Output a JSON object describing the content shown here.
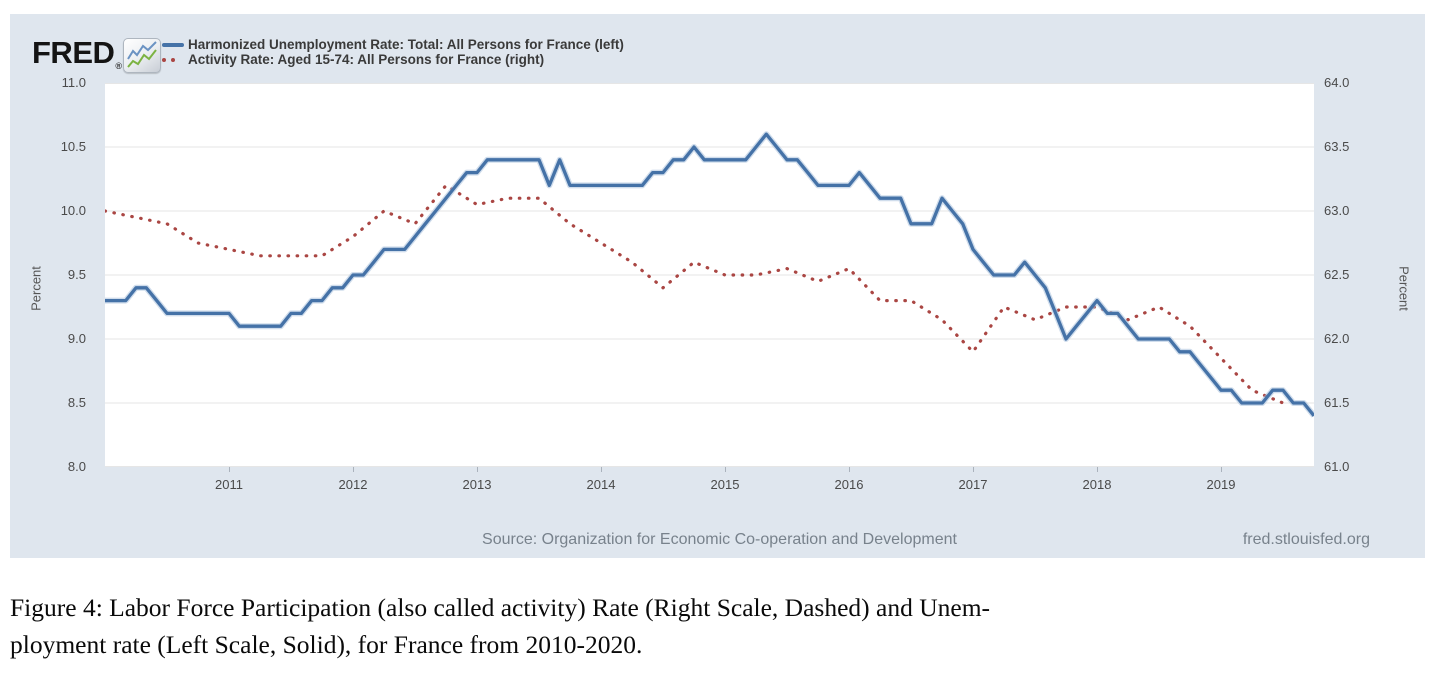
{
  "header": {
    "logo": "FRED",
    "logo_registered": "®",
    "legend": [
      {
        "label": "Harmonized Unemployment Rate: Total: All Persons for France (left)",
        "swatch": "solid-line",
        "color": "#4572a7"
      },
      {
        "label": "Activity Rate: Aged 15-74: All Persons for France (right)",
        "swatch": "dotted-line",
        "color": "#aa4643"
      }
    ]
  },
  "left_axis": {
    "title": "Percent",
    "ticks": [
      "11.0",
      "10.5",
      "10.0",
      "9.5",
      "9.0",
      "8.5",
      "8.0"
    ]
  },
  "right_axis": {
    "title": "Percent",
    "ticks": [
      "64.0",
      "63.5",
      "63.0",
      "62.5",
      "62.0",
      "61.5",
      "61.0"
    ]
  },
  "x_axis": {
    "years": [
      "2011",
      "2012",
      "2013",
      "2014",
      "2015",
      "2016",
      "2017",
      "2018",
      "2019"
    ]
  },
  "footer": {
    "source": "Source: Organization for Economic Co-operation and Development",
    "site": "fred.stlouisfed.org"
  },
  "caption": {
    "line1": "Figure 4: Labor Force Participation (also called activity) Rate (Right Scale, Dashed) and Unem-",
    "line2": "ployment rate (Left Scale, Solid), for France from 2010-2020."
  },
  "chart_data": {
    "type": "line",
    "title": "",
    "grid": true,
    "x_range_years": [
      2010.0,
      2019.75
    ],
    "left_ylim": [
      8.0,
      11.0
    ],
    "right_ylim": [
      61.0,
      64.0
    ],
    "legend_position": "top-left",
    "series": [
      {
        "name": "Harmonized Unemployment Rate: Total: All Persons for France (left)",
        "axis": "left",
        "style": "solid",
        "color": "#4572a7",
        "frequency": "monthly",
        "start": "2010-01",
        "values": [
          9.3,
          9.3,
          9.3,
          9.4,
          9.4,
          9.3,
          9.2,
          9.2,
          9.2,
          9.2,
          9.2,
          9.2,
          9.2,
          9.1,
          9.1,
          9.1,
          9.1,
          9.1,
          9.2,
          9.2,
          9.3,
          9.3,
          9.4,
          9.4,
          9.5,
          9.5,
          9.6,
          9.7,
          9.7,
          9.7,
          9.8,
          9.9,
          10.0,
          10.1,
          10.2,
          10.3,
          10.3,
          10.4,
          10.4,
          10.4,
          10.4,
          10.4,
          10.4,
          10.2,
          10.4,
          10.2,
          10.2,
          10.2,
          10.2,
          10.2,
          10.2,
          10.2,
          10.2,
          10.3,
          10.3,
          10.4,
          10.4,
          10.5,
          10.4,
          10.4,
          10.4,
          10.4,
          10.4,
          10.5,
          10.6,
          10.5,
          10.4,
          10.4,
          10.3,
          10.2,
          10.2,
          10.2,
          10.2,
          10.3,
          10.2,
          10.1,
          10.1,
          10.1,
          9.9,
          9.9,
          9.9,
          10.1,
          10.0,
          9.9,
          9.7,
          9.6,
          9.5,
          9.5,
          9.5,
          9.6,
          9.5,
          9.4,
          9.2,
          9.0,
          9.1,
          9.2,
          9.3,
          9.2,
          9.2,
          9.1,
          9.0,
          9.0,
          9.0,
          9.0,
          8.9,
          8.9,
          8.8,
          8.7,
          8.6,
          8.6,
          8.5,
          8.5,
          8.5,
          8.6,
          8.6,
          8.5,
          8.5,
          8.4
        ]
      },
      {
        "name": "Activity Rate: Aged 15-74: All Persons for France (right)",
        "axis": "right",
        "style": "dotted",
        "color": "#aa4643",
        "frequency": "quarterly",
        "start": "2010-Q1",
        "values": [
          63.0,
          62.95,
          62.9,
          62.75,
          62.7,
          62.65,
          62.65,
          62.65,
          62.8,
          63.0,
          62.9,
          63.2,
          63.05,
          63.1,
          63.1,
          62.9,
          62.75,
          62.6,
          62.4,
          62.6,
          62.5,
          62.5,
          62.55,
          62.45,
          62.55,
          62.3,
          62.3,
          62.15,
          61.9,
          62.25,
          62.15,
          62.25,
          62.25,
          62.15,
          62.25,
          62.1,
          61.85,
          61.6,
          61.5
        ]
      }
    ]
  }
}
